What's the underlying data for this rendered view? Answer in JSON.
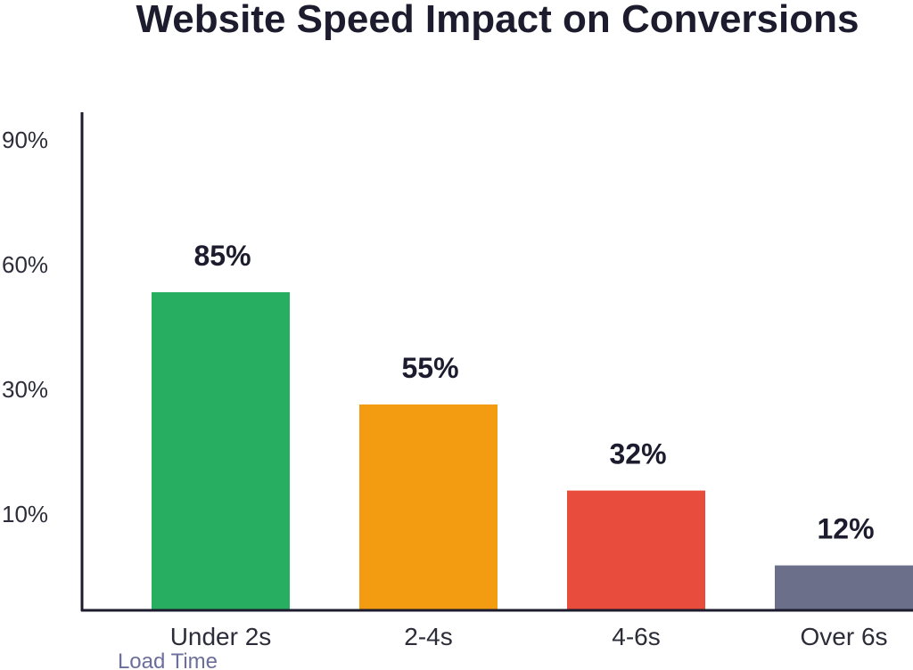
{
  "chart_data": {
    "type": "bar",
    "title": "Website Speed Impact on Conversions",
    "xlabel": "Load Time",
    "ylabel": "",
    "categories": [
      "Under 2s",
      "2-4s",
      "4-6s",
      "Over 6s"
    ],
    "values": [
      85,
      55,
      32,
      12
    ],
    "value_labels": [
      "85%",
      "55%",
      "32%",
      "12%"
    ],
    "colors": [
      "#27ae60",
      "#f39c12",
      "#e74c3c",
      "#6b6f8a"
    ],
    "y_ticks": [
      {
        "value": 90,
        "label": "90%"
      },
      {
        "value": 60,
        "label": "60%"
      },
      {
        "value": 30,
        "label": "30%"
      },
      {
        "value": 10,
        "label": "10%"
      }
    ],
    "grid": false,
    "legend": "none"
  }
}
